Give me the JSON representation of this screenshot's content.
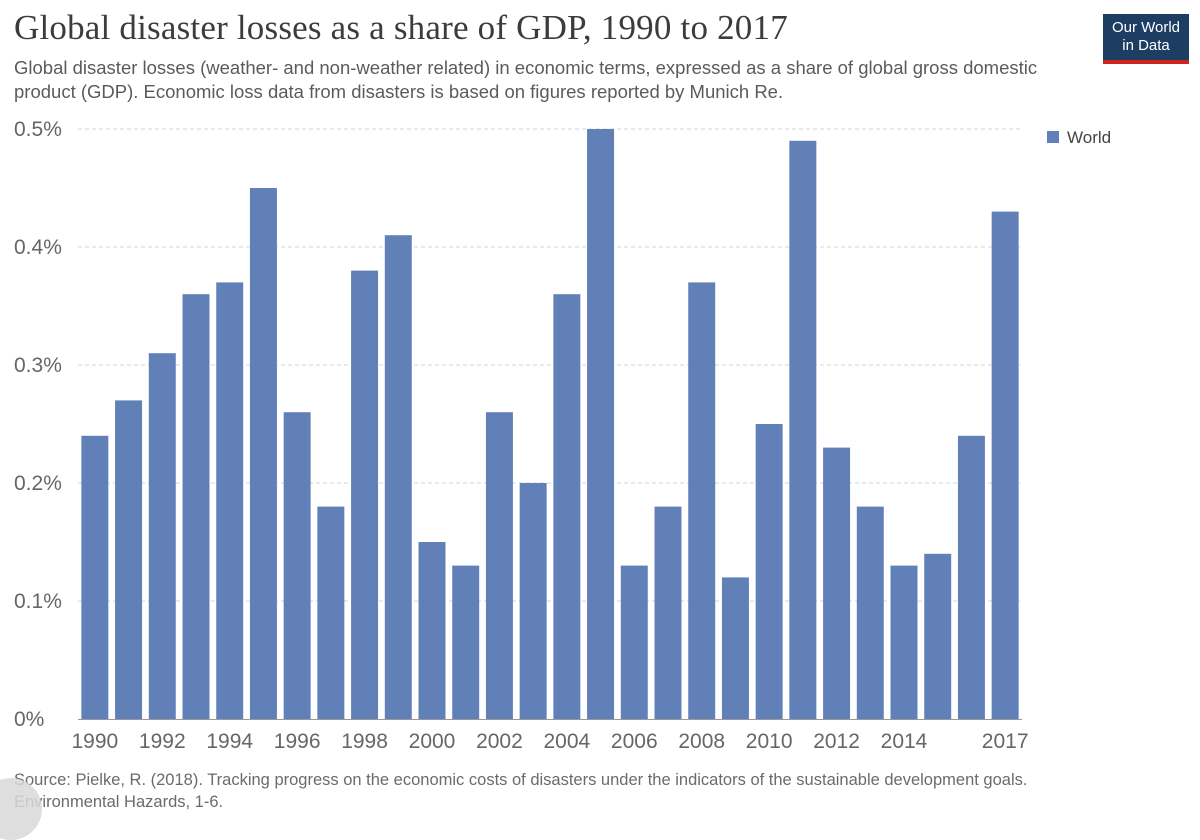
{
  "header": {
    "title": "Global disaster losses as a share of GDP, 1990 to 2017",
    "subtitle": "Global disaster losses (weather- and non-weather related) in economic terms, expressed as a share of global gross domestic product (GDP). Economic loss data from disasters is based on figures reported by Munich Re."
  },
  "logo": {
    "line1": "Our World",
    "line2": "in Data",
    "bg_color": "#1d3d63",
    "accent_color": "#ce261e"
  },
  "footer": {
    "source_line1": "Source: Pielke, R. (2018). Tracking progress on the economic costs of disasters under the indicators of the sustainable development goals.",
    "source_line2": "Environmental Hazards, 1-6."
  },
  "chart_data": {
    "type": "bar",
    "title": "Global disaster losses as a share of GDP, 1990 to 2017",
    "categories": [
      "1990",
      "1991",
      "1992",
      "1993",
      "1994",
      "1995",
      "1996",
      "1997",
      "1998",
      "1999",
      "2000",
      "2001",
      "2002",
      "2003",
      "2004",
      "2005",
      "2006",
      "2007",
      "2008",
      "2009",
      "2010",
      "2011",
      "2012",
      "2013",
      "2014",
      "2015",
      "2016",
      "2017"
    ],
    "series": [
      {
        "name": "World",
        "color": "#6180b7",
        "values": [
          0.24,
          0.27,
          0.31,
          0.36,
          0.37,
          0.45,
          0.26,
          0.18,
          0.38,
          0.41,
          0.15,
          0.13,
          0.26,
          0.2,
          0.36,
          0.5,
          0.13,
          0.18,
          0.37,
          0.12,
          0.25,
          0.49,
          0.23,
          0.18,
          0.13,
          0.14,
          0.24,
          0.43
        ]
      }
    ],
    "xtick_labels": [
      "1990",
      "1992",
      "1994",
      "1996",
      "1998",
      "2000",
      "2002",
      "2004",
      "2006",
      "2008",
      "2010",
      "2012",
      "2014",
      "2017"
    ],
    "ytick_labels": [
      "0%",
      "0.1%",
      "0.2%",
      "0.3%",
      "0.4%",
      "0.5%"
    ],
    "yticks": [
      0,
      0.1,
      0.2,
      0.3,
      0.4,
      0.5
    ],
    "ylim": [
      0,
      0.5
    ],
    "unit": "%",
    "grid": true,
    "grid_style": "dashed",
    "legend_position": "top-right",
    "xlabel": "",
    "ylabel": ""
  }
}
